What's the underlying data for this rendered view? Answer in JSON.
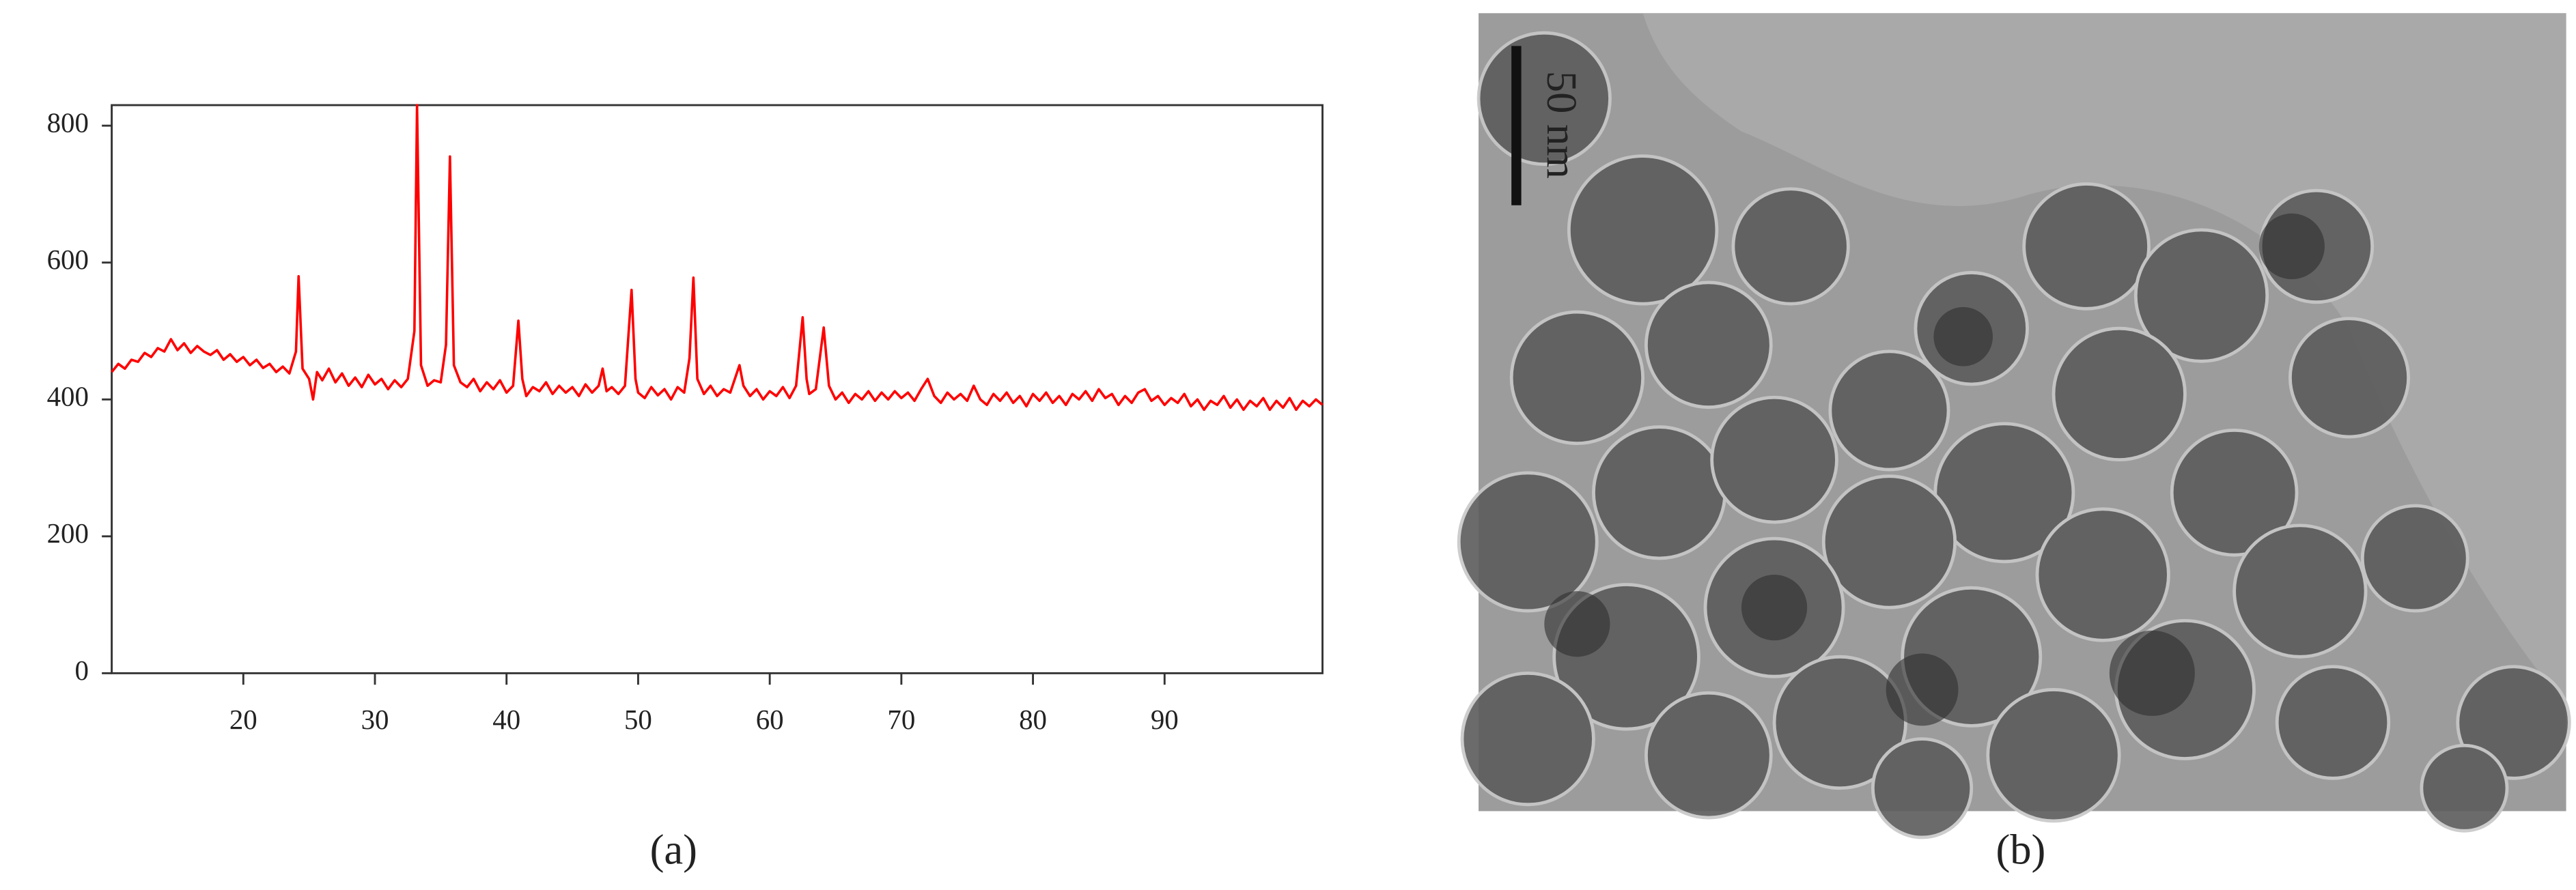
{
  "chart_data": {
    "type": "line",
    "color": "#ff0000",
    "x": [
      10,
      10.5,
      11,
      11.5,
      12,
      12.5,
      13,
      13.5,
      14,
      14.5,
      15,
      15.5,
      16,
      16.5,
      17,
      17.5,
      18,
      18.5,
      19,
      19.5,
      20,
      20.5,
      21,
      21.5,
      22,
      22.5,
      23,
      23.5,
      24,
      24.2,
      24.5,
      25,
      25.3,
      25.6,
      26,
      26.5,
      27,
      27.5,
      28,
      28.5,
      29,
      29.5,
      30,
      30.5,
      31,
      31.5,
      32,
      32.5,
      33,
      33.2,
      33.5,
      34,
      34.5,
      35,
      35.4,
      35.7,
      36,
      36.5,
      37,
      37.5,
      38,
      38.5,
      39,
      39.5,
      40,
      40.5,
      40.9,
      41.2,
      41.5,
      42,
      42.5,
      43,
      43.5,
      44,
      44.5,
      45,
      45.5,
      46,
      46.5,
      47,
      47.3,
      47.6,
      48,
      48.5,
      49,
      49.5,
      49.8,
      50,
      50.5,
      51,
      51.5,
      52,
      52.5,
      53,
      53.5,
      53.9,
      54.2,
      54.5,
      55,
      55.5,
      56,
      56.5,
      57,
      57.7,
      58,
      58.5,
      59,
      59.5,
      60,
      60.5,
      61,
      61.5,
      62,
      62.5,
      62.8,
      63,
      63.5,
      64.1,
      64.5,
      65,
      65.5,
      66,
      66.5,
      67,
      67.5,
      68,
      68.5,
      69,
      69.5,
      70,
      70.5,
      71,
      71.5,
      72,
      72.5,
      73,
      73.5,
      74,
      74.5,
      75,
      75.5,
      76,
      76.5,
      77,
      77.5,
      78,
      78.5,
      79,
      79.5,
      80,
      80.5,
      81,
      81.5,
      82,
      82.5,
      83,
      83.5,
      84,
      84.5,
      85,
      85.5,
      86,
      86.5,
      87,
      87.5,
      88,
      88.5,
      89,
      89.5,
      90,
      90.5,
      91,
      91.5,
      92,
      92.5,
      93,
      93.5,
      94,
      94.5,
      95,
      95.5,
      96,
      96.5,
      97,
      97.5,
      98,
      98.5,
      99,
      99.5,
      100,
      100.5,
      101,
      101.5,
      102
    ],
    "values": [
      440,
      452,
      445,
      458,
      455,
      468,
      462,
      475,
      470,
      488,
      472,
      482,
      468,
      478,
      470,
      465,
      472,
      458,
      466,
      455,
      462,
      450,
      458,
      446,
      452,
      440,
      448,
      438,
      470,
      580,
      445,
      430,
      400,
      440,
      428,
      445,
      425,
      438,
      420,
      432,
      418,
      436,
      422,
      430,
      415,
      428,
      418,
      430,
      500,
      830,
      450,
      420,
      428,
      425,
      480,
      755,
      450,
      425,
      418,
      430,
      412,
      425,
      415,
      428,
      410,
      420,
      515,
      430,
      405,
      418,
      412,
      425,
      408,
      420,
      410,
      418,
      405,
      422,
      410,
      420,
      445,
      412,
      418,
      408,
      420,
      560,
      430,
      410,
      402,
      418,
      406,
      415,
      400,
      418,
      410,
      460,
      578,
      430,
      408,
      420,
      405,
      415,
      410,
      450,
      420,
      405,
      415,
      400,
      412,
      405,
      418,
      402,
      420,
      520,
      430,
      408,
      415,
      505,
      420,
      400,
      410,
      395,
      408,
      400,
      412,
      398,
      410,
      400,
      412,
      402,
      410,
      398,
      415,
      430,
      405,
      395,
      410,
      400,
      408,
      398,
      420,
      400,
      392,
      408,
      398,
      410,
      395,
      405,
      390,
      408,
      398,
      410,
      395,
      405,
      392,
      408,
      400,
      412,
      398,
      415,
      402,
      408,
      392,
      405,
      395,
      410,
      415,
      398,
      405,
      392,
      402,
      395,
      408,
      390,
      400,
      385,
      398,
      392,
      405,
      388,
      400,
      385,
      398,
      390,
      402,
      385,
      398,
      388,
      402,
      385,
      398,
      390,
      400,
      392
    ],
    "xlim": [
      10,
      102
    ],
    "ylim": [
      0,
      830
    ],
    "xticks": [
      20,
      30,
      40,
      50,
      60,
      70,
      80,
      90
    ],
    "yticks": [
      0,
      200,
      400,
      600,
      800
    ]
  },
  "captions": {
    "a": "(a)",
    "b": "(b)"
  },
  "image": {
    "scale_bar": "50 nm"
  }
}
